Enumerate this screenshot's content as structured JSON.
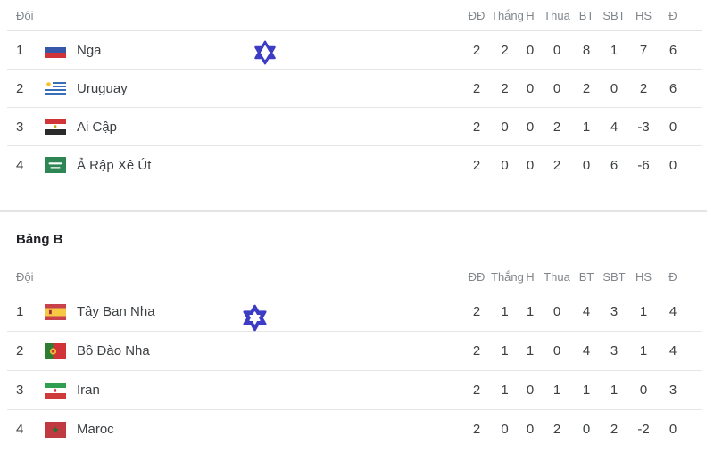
{
  "page": {
    "background": "#ffffff"
  },
  "columns": {
    "team": "Đội",
    "stats": [
      "ĐĐ",
      "Thắng",
      "H",
      "Thua",
      "BT",
      "SBT",
      "HS",
      "Đ"
    ]
  },
  "groups": [
    {
      "title": "",
      "rows": [
        {
          "rank": "1",
          "team": "Nga",
          "flag": "russia",
          "stats": [
            "2",
            "2",
            "0",
            "0",
            "8",
            "1",
            "7",
            "6"
          ],
          "marker": {
            "icon": "hexagram-marker",
            "inner": "diamond"
          }
        },
        {
          "rank": "2",
          "team": "Uruguay",
          "flag": "uruguay",
          "stats": [
            "2",
            "2",
            "0",
            "0",
            "2",
            "0",
            "2",
            "6"
          ],
          "marker": null
        },
        {
          "rank": "3",
          "team": "Ai Cập",
          "flag": "egypt",
          "stats": [
            "2",
            "0",
            "0",
            "2",
            "1",
            "4",
            "-3",
            "0"
          ],
          "marker": null
        },
        {
          "rank": "4",
          "team": "Ả Rập Xê Út",
          "flag": "saudi-arabia",
          "stats": [
            "2",
            "0",
            "0",
            "2",
            "0",
            "6",
            "-6",
            "0"
          ],
          "marker": null
        }
      ]
    },
    {
      "title": "Bảng B",
      "rows": [
        {
          "rank": "1",
          "team": "Tây Ban Nha",
          "flag": "spain",
          "stats": [
            "2",
            "1",
            "1",
            "0",
            "4",
            "3",
            "1",
            "4"
          ],
          "marker": {
            "icon": "hexagram-marker",
            "inner": "star"
          }
        },
        {
          "rank": "2",
          "team": "Bồ Đào Nha",
          "flag": "portugal",
          "stats": [
            "2",
            "1",
            "1",
            "0",
            "4",
            "3",
            "1",
            "4"
          ],
          "marker": null
        },
        {
          "rank": "3",
          "team": "Iran",
          "flag": "iran",
          "stats": [
            "2",
            "1",
            "0",
            "1",
            "1",
            "1",
            "0",
            "3"
          ],
          "marker": null
        },
        {
          "rank": "4",
          "team": "Maroc",
          "flag": "morocco",
          "stats": [
            "2",
            "0",
            "0",
            "2",
            "0",
            "2",
            "-2",
            "0"
          ],
          "marker": null
        }
      ]
    }
  ],
  "colors": {
    "marker_blue": "#3c3cc4",
    "header_text": "#80868b",
    "body_text": "#3c4043",
    "divider": "#e2e2e2"
  }
}
